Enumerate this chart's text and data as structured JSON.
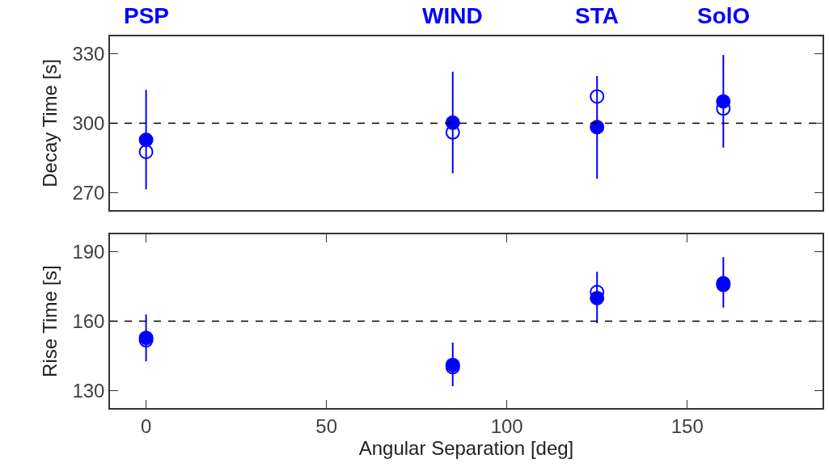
{
  "chart_data": [
    {
      "type": "scatter",
      "ylabel": "Decay Time [s]",
      "xlim": [
        -10,
        187.5
      ],
      "ylim": [
        262.5,
        337.5
      ],
      "yticks": [
        270,
        300,
        330
      ],
      "tick_labels": "y",
      "marker": "circle",
      "annotations": [
        "PSP",
        "WIND",
        "STA",
        "SolO"
      ],
      "ref_lines": [
        {
          "axis": "y",
          "value": 300,
          "color": "#000000",
          "line_style": "dashed"
        }
      ],
      "series": [
        {
          "color": "#0000ff",
          "x": [
            0,
            85,
            125,
            160
          ],
          "values": [
            292.8,
            300.2,
            298.3,
            309.4
          ],
          "errors": [
            [
              271.4,
              314.4
            ],
            [
              278.3,
              322.2
            ],
            [
              276,
              320.4
            ],
            [
              289.4,
              329.5
            ]
          ]
        },
        {
          "color": "#0000ff",
          "x": [
            0,
            85,
            125,
            160
          ],
          "values": [
            287.6,
            296,
            311.5,
            306.3
          ]
        }
      ]
    },
    {
      "type": "scatter",
      "ylabel": "Rise Time [s]",
      "xlabel": "Angular Separation [deg]",
      "xlim": [
        -10,
        187.5
      ],
      "xticks": [
        0,
        50,
        100,
        150
      ],
      "ylim": [
        122.5,
        197.5
      ],
      "yticks": [
        130,
        160,
        190
      ],
      "marker": "circle",
      "ref_lines": [
        {
          "axis": "y",
          "value": 160,
          "color": "#000000",
          "line_style": "dashed"
        }
      ],
      "series": [
        {
          "color": "#0000ff",
          "x": [
            0,
            85,
            125,
            160
          ],
          "values": [
            152.8,
            141.1,
            170,
            176.4
          ],
          "errors": [
            [
              142.7,
              162.9
            ],
            [
              131.9,
              150.8
            ],
            [
              159.2,
              181.3
            ],
            [
              165.9,
              187.7
            ]
          ]
        },
        {
          "color": "#0000ff",
          "x": [
            0,
            85,
            125,
            160
          ],
          "values": [
            151.8,
            140.2,
            172.6,
            175.7
          ]
        }
      ]
    }
  ]
}
